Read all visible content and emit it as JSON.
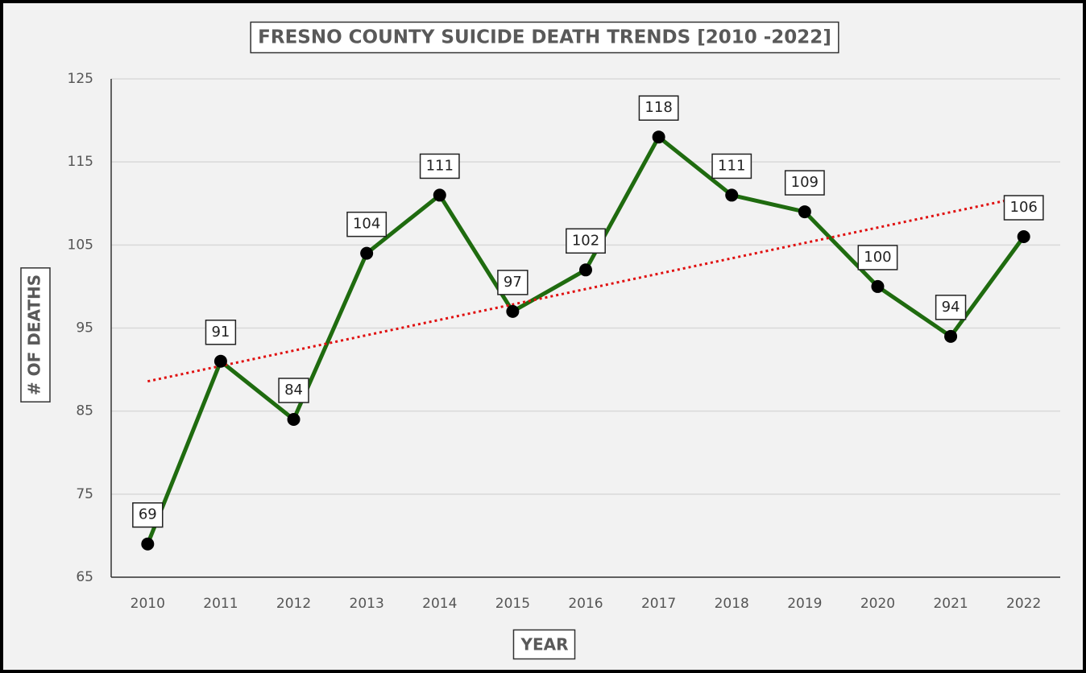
{
  "chart_data": {
    "type": "line",
    "title": "FRESNO COUNTY SUICIDE DEATH TRENDS [2010 -2022]",
    "x_label": "YEAR",
    "y_label": "# OF DEATHS",
    "categories": [
      "2010",
      "2011",
      "2012",
      "2013",
      "2014",
      "2015",
      "2016",
      "2017",
      "2018",
      "2019",
      "2020",
      "2021",
      "2022"
    ],
    "series": [
      {
        "name": "Deaths",
        "color": "#1f6b0f",
        "values": [
          69,
          91,
          84,
          104,
          111,
          97,
          102,
          118,
          111,
          109,
          100,
          94,
          106
        ]
      }
    ],
    "trendline": {
      "type": "linear",
      "color": "#e01010"
    },
    "ylim": [
      65,
      125
    ],
    "yticks": [
      65,
      75,
      85,
      95,
      105,
      115,
      125
    ],
    "grid": true
  }
}
